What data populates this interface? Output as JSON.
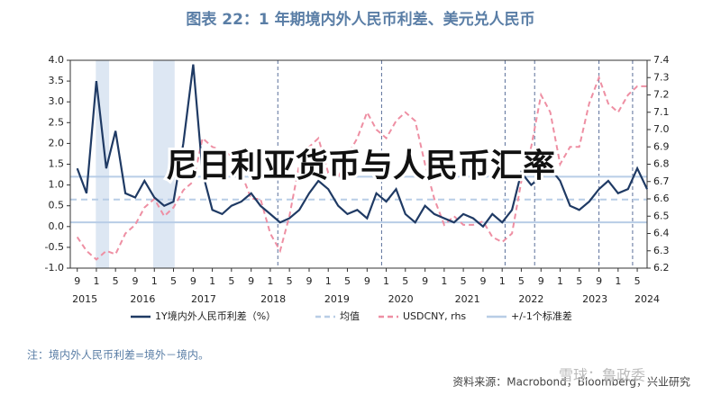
{
  "chart_data": {
    "type": "line",
    "title": "图表 22：1 年期境内外人民币利差、美元兑人民币",
    "overlay_text": "尼日利亚货币与人民币汇率",
    "note": "注：境内外人民币利差=境外－境内。",
    "source": "资料来源：Macrobond，Bloomberg，兴业研究",
    "watermark": "雪球：鲁政委",
    "xlim": [
      2014.55,
      2024.5
    ],
    "xticks": [
      {
        "value": 2014.67,
        "label": "9"
      },
      {
        "value": 2015.0,
        "label": "1"
      },
      {
        "value": 2015.33,
        "label": "5"
      },
      {
        "value": 2015.67,
        "label": "9"
      },
      {
        "value": 2016.0,
        "label": "1"
      },
      {
        "value": 2016.33,
        "label": "5"
      },
      {
        "value": 2016.67,
        "label": "9"
      },
      {
        "value": 2017.0,
        "label": "1"
      },
      {
        "value": 2017.33,
        "label": "5"
      },
      {
        "value": 2017.67,
        "label": "9"
      },
      {
        "value": 2018.0,
        "label": "1"
      },
      {
        "value": 2018.33,
        "label": "5"
      },
      {
        "value": 2018.67,
        "label": "9"
      },
      {
        "value": 2019.0,
        "label": "1"
      },
      {
        "value": 2019.33,
        "label": "5"
      },
      {
        "value": 2019.67,
        "label": "9"
      },
      {
        "value": 2020.0,
        "label": "1"
      },
      {
        "value": 2020.33,
        "label": "5"
      },
      {
        "value": 2020.67,
        "label": "9"
      },
      {
        "value": 2021.0,
        "label": "1"
      },
      {
        "value": 2021.33,
        "label": "5"
      },
      {
        "value": 2021.67,
        "label": "9"
      },
      {
        "value": 2022.0,
        "label": "1"
      },
      {
        "value": 2022.33,
        "label": "5"
      },
      {
        "value": 2022.67,
        "label": "9"
      },
      {
        "value": 2023.0,
        "label": "1"
      },
      {
        "value": 2023.33,
        "label": "5"
      },
      {
        "value": 2023.67,
        "label": "9"
      },
      {
        "value": 2024.0,
        "label": "1"
      },
      {
        "value": 2024.33,
        "label": "5"
      }
    ],
    "year_ticks": [
      {
        "value": 2014.8,
        "label": "2015"
      },
      {
        "value": 2015.8,
        "label": "2016"
      },
      {
        "value": 2016.85,
        "label": "2017"
      },
      {
        "value": 2018.05,
        "label": "2018"
      },
      {
        "value": 2019.15,
        "label": "2019"
      },
      {
        "value": 2020.25,
        "label": "2020"
      },
      {
        "value": 2021.4,
        "label": "2021"
      },
      {
        "value": 2022.5,
        "label": "2022"
      },
      {
        "value": 2023.6,
        "label": "2023"
      },
      {
        "value": 2024.5,
        "label": "2024"
      }
    ],
    "ylim": [
      -1.0,
      4.0
    ],
    "yticks": [
      {
        "value": -1.0,
        "label": "-1.0"
      },
      -0.5,
      {
        "value": 0.0,
        "label": "0.0"
      },
      0.5,
      {
        "value": 1.0,
        "label": "1.0"
      },
      1.5,
      {
        "value": 2.0,
        "label": "2.0"
      },
      2.5,
      {
        "value": 3.0,
        "label": "3.0"
      },
      3.5,
      {
        "value": 4.0,
        "label": "4.0"
      }
    ],
    "y2lim": [
      6.2,
      7.4
    ],
    "y2ticks": [
      6.2,
      6.3,
      6.4,
      6.5,
      6.6,
      6.7,
      6.8,
      6.9,
      {
        "value": 7.0,
        "label": "7.0"
      },
      7.1,
      7.2,
      7.3,
      7.4
    ],
    "x": [
      2014.67,
      2014.83,
      2015.0,
      2015.17,
      2015.33,
      2015.5,
      2015.67,
      2015.83,
      2016.0,
      2016.17,
      2016.33,
      2016.5,
      2016.67,
      2016.83,
      2017.0,
      2017.17,
      2017.33,
      2017.5,
      2017.67,
      2017.83,
      2018.0,
      2018.17,
      2018.33,
      2018.5,
      2018.67,
      2018.83,
      2019.0,
      2019.17,
      2019.33,
      2019.5,
      2019.67,
      2019.83,
      2020.0,
      2020.17,
      2020.33,
      2020.5,
      2020.67,
      2020.83,
      2021.0,
      2021.17,
      2021.33,
      2021.5,
      2021.67,
      2021.83,
      2022.0,
      2022.17,
      2022.33,
      2022.5,
      2022.67,
      2022.83,
      2023.0,
      2023.17,
      2023.33,
      2023.5,
      2023.67,
      2023.83,
      2024.0,
      2024.17,
      2024.33,
      2024.5
    ],
    "series": [
      {
        "name": "1Y境内外人民币利差（%）",
        "color": "#1f3a64",
        "dash": false,
        "values": [
          1.4,
          0.8,
          3.5,
          1.4,
          2.3,
          0.8,
          0.7,
          1.1,
          0.7,
          0.5,
          0.6,
          2.0,
          3.9,
          1.3,
          0.4,
          0.3,
          0.5,
          0.6,
          0.8,
          0.5,
          0.3,
          0.1,
          0.2,
          0.4,
          0.8,
          1.1,
          0.9,
          0.5,
          0.3,
          0.4,
          0.2,
          0.8,
          0.6,
          0.9,
          0.3,
          0.1,
          0.5,
          0.3,
          0.2,
          0.1,
          0.3,
          0.2,
          0.0,
          0.3,
          0.1,
          0.4,
          1.3,
          1.0,
          1.2,
          1.4,
          1.1,
          0.5,
          0.4,
          0.6,
          0.9,
          1.1,
          0.8,
          0.9,
          1.4,
          0.9
        ]
      },
      {
        "name": "USDCNY, rhs",
        "color": "#ee8fa3",
        "dash": true,
        "axis": "y2",
        "values": [
          6.38,
          6.3,
          6.25,
          6.3,
          6.28,
          6.4,
          6.45,
          6.55,
          6.6,
          6.5,
          6.55,
          6.65,
          6.7,
          6.95,
          6.9,
          6.88,
          6.85,
          6.75,
          6.6,
          6.6,
          6.4,
          6.3,
          6.5,
          6.8,
          6.9,
          6.95,
          6.75,
          6.72,
          6.85,
          6.95,
          7.1,
          7.0,
          6.95,
          7.05,
          7.1,
          7.05,
          6.8,
          6.6,
          6.45,
          6.5,
          6.45,
          6.45,
          6.47,
          6.38,
          6.35,
          6.4,
          6.7,
          6.9,
          7.2,
          7.1,
          6.8,
          6.9,
          6.9,
          7.15,
          7.3,
          7.15,
          7.1,
          7.2,
          7.25,
          7.25
        ]
      }
    ],
    "reference_lines": [
      {
        "name": "均值",
        "color": "#b8cde6",
        "dash": true,
        "values": [
          0.65
        ]
      },
      {
        "name": "+/-1个标准差",
        "color": "#b8cde6",
        "dash": false,
        "values": [
          1.2,
          0.1
        ]
      }
    ],
    "shaded_ranges": [
      [
        2014.99,
        2015.22
      ],
      [
        2015.98,
        2016.35
      ]
    ],
    "shade_color": "#dde7f3",
    "event_lines": [
      2018.13,
      2019.92,
      2022.05,
      2022.56,
      2023.67,
      2024.25
    ],
    "event_color": "#5a6f9a"
  }
}
